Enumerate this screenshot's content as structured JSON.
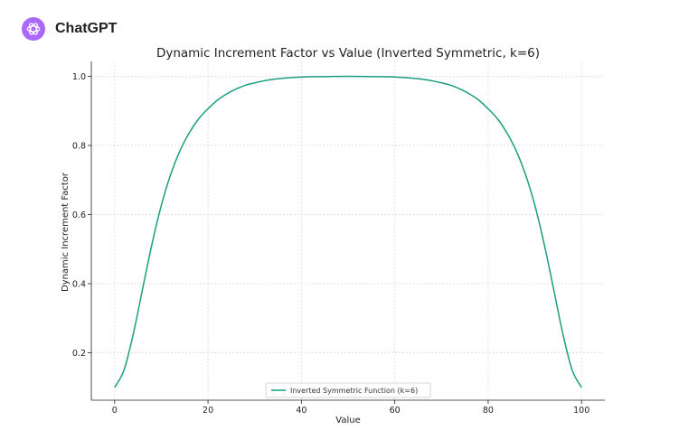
{
  "app": {
    "title": "ChatGPT",
    "brand_color": "#ab68ff",
    "logo_icon": "openai-logo-icon"
  },
  "chart_data": {
    "type": "line",
    "title": "Dynamic Increment Factor vs Value (Inverted Symmetric, k=6)",
    "xlabel": "Value",
    "ylabel": "Dynamic Increment Factor",
    "xlim": [
      -5,
      105
    ],
    "ylim": [
      0.063,
      1.043
    ],
    "xticks": [
      0,
      20,
      40,
      60,
      80,
      100
    ],
    "xtick_labels": [
      "0",
      "20",
      "40",
      "60",
      "80",
      "100"
    ],
    "yticks": [
      0.2,
      0.4,
      0.6,
      0.8,
      1.0
    ],
    "ytick_labels": [
      "0.2",
      "0.4",
      "0.6",
      "0.8",
      "1.0"
    ],
    "grid": true,
    "legend": "lower center",
    "series": [
      {
        "name": "Inverted Symmetric Function (k=6)",
        "color": "#1a9e80",
        "x": [
          0,
          2,
          4,
          6,
          8,
          10,
          12,
          14,
          16,
          18,
          20,
          22,
          24,
          26,
          28,
          30,
          32,
          35,
          40,
          45,
          50,
          55,
          60,
          65,
          68,
          70,
          72,
          74,
          76,
          78,
          80,
          82,
          84,
          86,
          88,
          90,
          92,
          94,
          96,
          98,
          100
        ],
        "y": [
          0.1,
          0.15,
          0.255,
          0.386,
          0.515,
          0.627,
          0.716,
          0.785,
          0.837,
          0.877,
          0.906,
          0.931,
          0.949,
          0.963,
          0.974,
          0.981,
          0.987,
          0.993,
          0.998,
          0.999,
          1.0,
          0.999,
          0.998,
          0.993,
          0.987,
          0.981,
          0.974,
          0.963,
          0.949,
          0.931,
          0.906,
          0.877,
          0.837,
          0.785,
          0.716,
          0.627,
          0.515,
          0.386,
          0.255,
          0.15,
          0.1
        ]
      }
    ]
  }
}
